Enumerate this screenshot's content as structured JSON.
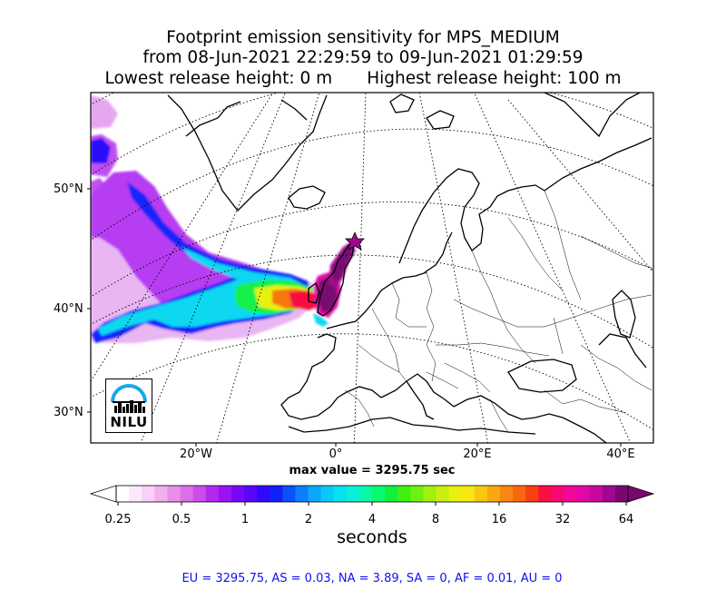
{
  "title": {
    "line1": "Footprint emission sensitivity for MPS_MEDIUM",
    "line2": "from 08-Jun-2021 22:29:59 to 09-Jun-2021 01:29:59",
    "line3_left": "Lowest release height: 0 m",
    "line3_right": "Highest release height: 100 m"
  },
  "map": {
    "lat_labels": [
      "50°N",
      "40°N",
      "30°N"
    ],
    "lon_labels": [
      "20°W",
      "0°",
      "20°E",
      "40°E"
    ],
    "logo_text": "NILU",
    "release_marker": "star"
  },
  "max_value": "max value = 3295.75 sec",
  "colorbar": {
    "ticks": [
      "0.25",
      "0.5",
      "1",
      "2",
      "4",
      "8",
      "16",
      "32",
      "64"
    ],
    "unit": "seconds",
    "colors": [
      "#ffffff",
      "#fde9fd",
      "#f8d0f8",
      "#f0b0f0",
      "#e890e8",
      "#dc6fe8",
      "#cc4de8",
      "#b328f0",
      "#9a12f5",
      "#7a06f8",
      "#5a04fa",
      "#3008fb",
      "#1020fb",
      "#0a50fb",
      "#0a80fb",
      "#0aa8fb",
      "#08c8f8",
      "#08e0f0",
      "#08f0d8",
      "#08f8a8",
      "#08f870",
      "#10f040",
      "#40f010",
      "#70f010",
      "#a0f010",
      "#c8f010",
      "#e8f010",
      "#f8e810",
      "#f8c810",
      "#f8a810",
      "#f88810",
      "#f86810",
      "#f84010",
      "#f81040",
      "#f80870",
      "#f00898",
      "#e008a8",
      "#c808a0",
      "#a00890",
      "#780870"
    ]
  },
  "stats": "EU = 3295.75,  AS = 0.03,  NA = 3.89,  SA = 0,  AF = 0.01,  AU = 0"
}
